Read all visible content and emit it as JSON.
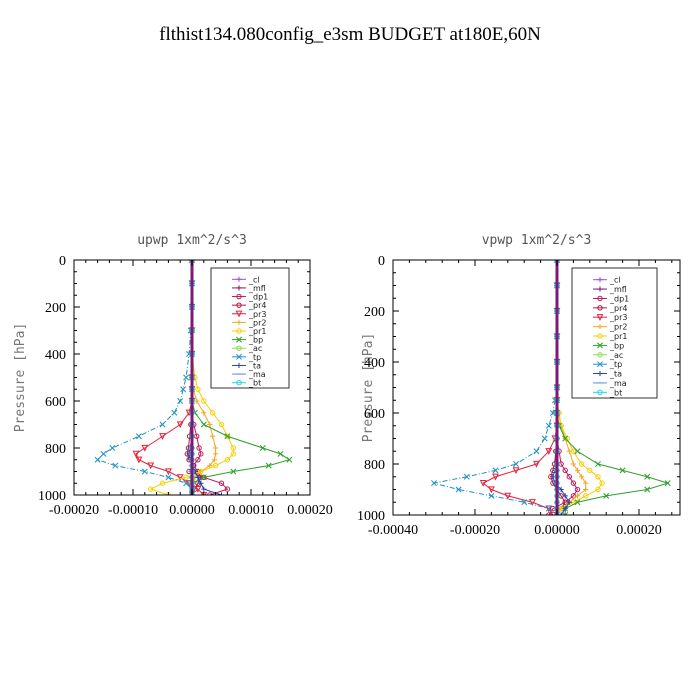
{
  "title": "flthist134.080config_e3sm  BUDGET at180E,60N",
  "chart_data": [
    {
      "type": "line",
      "title": "upwp  1xm^2/s^3",
      "ylabel": "Pressure [hPa]",
      "xlim": [
        -0.0002,
        0.0002
      ],
      "ylim": [
        1000,
        0
      ],
      "xticks": [
        "-0.00020",
        "-0.00010",
        "0.00000",
        "0.00010",
        "0.00020"
      ],
      "xtick_values": [
        -0.0002,
        -0.0001,
        0,
        0.0001,
        0.0002
      ],
      "yticks": [
        "0",
        "200",
        "400",
        "600",
        "800",
        "1000"
      ],
      "ytick_values": [
        0,
        200,
        400,
        600,
        800,
        1000
      ],
      "legend_position": "top-right",
      "pressure": [
        0,
        100,
        200,
        300,
        400,
        500,
        550,
        600,
        650,
        700,
        750,
        800,
        825,
        850,
        875,
        900,
        925,
        950,
        975,
        1000
      ],
      "series": [
        {
          "name": "_cl",
          "color": "#9a4fd6",
          "marker": "+",
          "values": [
            0,
            0,
            0,
            0,
            0,
            0,
            0,
            0,
            0,
            0,
            0,
            0,
            0,
            0,
            0,
            0,
            0,
            0,
            0,
            0
          ]
        },
        {
          "name": "_mfl",
          "color": "#7b1a78",
          "marker": "+",
          "values": [
            0,
            0,
            0,
            0,
            0,
            0,
            0,
            0,
            0,
            0,
            0,
            0,
            0,
            0,
            0,
            0,
            0,
            0,
            0,
            0
          ]
        },
        {
          "name": "_dp1",
          "color": "#c2185b",
          "marker": "o",
          "values": [
            0,
            0,
            0,
            0,
            0,
            0,
            0,
            0,
            0,
            3e-06,
            8e-06,
            1.2e-05,
            1.5e-05,
            1e-05,
            2e-06,
            -5e-06,
            2e-05,
            5e-05,
            6e-05,
            3e-05
          ]
        },
        {
          "name": "_pr4",
          "color": "#b01840",
          "marker": "o",
          "values": [
            0,
            0,
            0,
            0,
            0,
            0,
            0,
            0,
            0,
            -2e-06,
            -4e-06,
            -6e-06,
            -8e-06,
            -5e-06,
            3e-06,
            1e-05,
            1.5e-05,
            1e-05,
            5e-06,
            0
          ]
        },
        {
          "name": "_pr3",
          "color": "#e8213a",
          "marker": "v",
          "values": [
            0,
            0,
            0,
            0,
            0,
            0,
            0,
            0,
            -5e-06,
            -2e-05,
            -5e-05,
            -8e-05,
            -9.5e-05,
            -9e-05,
            -7e-05,
            -4e-05,
            -2e-05,
            -5e-06,
            1e-05,
            2e-05
          ]
        },
        {
          "name": "_pr2",
          "color": "#f5a623",
          "marker": "+",
          "values": [
            0,
            0,
            0,
            0,
            0,
            0,
            2e-06,
            8e-06,
            2e-05,
            3e-05,
            3.5e-05,
            4e-05,
            4e-05,
            3.8e-05,
            3e-05,
            1.5e-05,
            5e-06,
            0,
            0,
            0
          ]
        },
        {
          "name": "_pr1",
          "color": "#f5d000",
          "marker": "o",
          "values": [
            0,
            0,
            0,
            0,
            0,
            5e-06,
            1e-05,
            2e-05,
            3.5e-05,
            5e-05,
            6e-05,
            7e-05,
            7e-05,
            6e-05,
            4e-05,
            1.5e-05,
            -1e-05,
            -5e-05,
            -7e-05,
            -4e-05
          ]
        },
        {
          "name": "_bp",
          "color": "#2ca02c",
          "marker": "x",
          "values": [
            0,
            0,
            0,
            0,
            0,
            0,
            0,
            0,
            5e-06,
            2e-05,
            6e-05,
            0.00012,
            0.00015,
            0.000165,
            0.00013,
            7e-05,
            2e-05,
            0,
            0,
            0
          ]
        },
        {
          "name": "_ac",
          "color": "#8fd84e",
          "marker": "o",
          "values": [
            0,
            0,
            0,
            0,
            0,
            0,
            0,
            0,
            0,
            0,
            0,
            0,
            0,
            0,
            0,
            0,
            0,
            0,
            0,
            0
          ]
        },
        {
          "name": "_tp",
          "color": "#1f8fc2",
          "marker": "x",
          "values": [
            0,
            0,
            0,
            -2e-06,
            -5e-06,
            -1e-05,
            -1.5e-05,
            -2e-05,
            -3e-05,
            -5e-05,
            -9e-05,
            -0.000135,
            -0.00015,
            -0.00016,
            -0.00013,
            -8e-05,
            -4e-05,
            -1e-05,
            0,
            0
          ]
        },
        {
          "name": "_ta",
          "color": "#2b3fb0",
          "marker": "+",
          "values": [
            0,
            0,
            0,
            0,
            0,
            0,
            0,
            0,
            0,
            0,
            0,
            -3e-06,
            -5e-06,
            -3e-06,
            0,
            5e-06,
            1e-05,
            1.5e-05,
            2e-05,
            5e-05
          ]
        },
        {
          "name": "_ma",
          "color": "#5a8ee0",
          "marker": "-",
          "values": [
            0,
            0,
            0,
            0,
            0,
            0,
            0,
            0,
            0,
            0,
            0,
            0,
            0,
            0,
            0,
            0,
            0,
            0,
            0,
            0
          ]
        },
        {
          "name": "_bt",
          "color": "#20d6e6",
          "marker": "o",
          "values": [
            0,
            0,
            0,
            0,
            0,
            0,
            0,
            0,
            0,
            0,
            0,
            0,
            0,
            0,
            0,
            0,
            0,
            0,
            0,
            0
          ]
        }
      ]
    },
    {
      "type": "line",
      "title": "vpwp  1xm^2/s^3",
      "ylabel": "Pressure [hPa]",
      "xlim": [
        -0.0004,
        0.0003
      ],
      "ylim": [
        1000,
        0
      ],
      "xticks": [
        "-0.00040",
        "-0.00020",
        "0.00000",
        "0.00020"
      ],
      "xtick_values": [
        -0.0004,
        -0.0002,
        0,
        0.0002
      ],
      "yticks": [
        "0",
        "200",
        "400",
        "600",
        "800",
        "1000"
      ],
      "ytick_values": [
        0,
        200,
        400,
        600,
        800,
        1000
      ],
      "legend_position": "top-right",
      "pressure": [
        0,
        100,
        200,
        300,
        400,
        500,
        550,
        600,
        650,
        700,
        750,
        800,
        825,
        850,
        875,
        900,
        925,
        950,
        975,
        1000
      ],
      "series": [
        {
          "name": "_cl",
          "color": "#9a4fd6",
          "marker": "+",
          "values": [
            0,
            0,
            0,
            0,
            0,
            0,
            0,
            0,
            0,
            0,
            0,
            0,
            0,
            0,
            0,
            0,
            0,
            0,
            0,
            0
          ]
        },
        {
          "name": "_mfl",
          "color": "#7b1a78",
          "marker": "+",
          "values": [
            0,
            0,
            0,
            0,
            0,
            0,
            0,
            0,
            0,
            0,
            0,
            0,
            0,
            0,
            0,
            0,
            0,
            0,
            0,
            0
          ]
        },
        {
          "name": "_dp1",
          "color": "#c2185b",
          "marker": "o",
          "values": [
            0,
            0,
            0,
            0,
            0,
            0,
            0,
            0,
            0,
            0,
            5e-06,
            1e-05,
            2e-05,
            3e-05,
            4e-05,
            5e-05,
            4e-05,
            2e-05,
            -1e-05,
            -2e-05
          ]
        },
        {
          "name": "_pr4",
          "color": "#b01840",
          "marker": "o",
          "values": [
            0,
            0,
            0,
            0,
            0,
            0,
            0,
            0,
            0,
            0,
            -3e-06,
            -6e-06,
            -1e-05,
            -1.5e-05,
            -1e-05,
            0,
            1e-05,
            2e-05,
            1e-05,
            0
          ]
        },
        {
          "name": "_pr3",
          "color": "#e8213a",
          "marker": "v",
          "values": [
            0,
            0,
            0,
            0,
            0,
            0,
            0,
            0,
            0,
            -5e-06,
            -2e-05,
            -5e-05,
            -0.0001,
            -0.00015,
            -0.00018,
            -0.00016,
            -0.00012,
            -6e-05,
            -2e-05,
            -1e-05
          ]
        },
        {
          "name": "_pr2",
          "color": "#f5a623",
          "marker": "+",
          "values": [
            0,
            0,
            0,
            0,
            0,
            0,
            0,
            3e-06,
            1e-05,
            2e-05,
            3e-05,
            4e-05,
            5e-05,
            6e-05,
            7e-05,
            7e-05,
            5e-05,
            3e-05,
            1e-05,
            0
          ]
        },
        {
          "name": "_pr1",
          "color": "#f5d000",
          "marker": "o",
          "values": [
            0,
            0,
            0,
            0,
            0,
            0,
            0,
            5e-06,
            1e-05,
            2.5e-05,
            4e-05,
            6e-05,
            8e-05,
            0.0001,
            0.00011,
            0.0001,
            7e-05,
            4e-05,
            1e-05,
            0
          ]
        },
        {
          "name": "_bp",
          "color": "#2ca02c",
          "marker": "x",
          "values": [
            0,
            0,
            0,
            0,
            0,
            0,
            0,
            0,
            5e-06,
            2e-05,
            5e-05,
            0.0001,
            0.00016,
            0.00022,
            0.00027,
            0.00022,
            0.00012,
            5e-05,
            2e-05,
            2e-05
          ]
        },
        {
          "name": "_ac",
          "color": "#8fd84e",
          "marker": "o",
          "values": [
            0,
            0,
            0,
            0,
            0,
            0,
            0,
            0,
            0,
            0,
            0,
            0,
            0,
            0,
            0,
            0,
            0,
            0,
            0,
            0
          ]
        },
        {
          "name": "_tp",
          "color": "#1f8fc2",
          "marker": "x",
          "values": [
            0,
            0,
            0,
            0,
            0,
            0,
            -5e-06,
            -1e-05,
            -2e-05,
            -3e-05,
            -5e-05,
            -0.0001,
            -0.00015,
            -0.00022,
            -0.0003,
            -0.00024,
            -0.00016,
            -8e-05,
            -2e-05,
            0
          ]
        },
        {
          "name": "_ta",
          "color": "#2b3fb0",
          "marker": "+",
          "values": [
            0,
            0,
            0,
            0,
            0,
            0,
            0,
            0,
            0,
            0,
            0,
            0,
            -5e-06,
            -1e-05,
            -5e-06,
            1e-05,
            2e-05,
            3e-05,
            2e-05,
            1e-05
          ]
        },
        {
          "name": "_ma",
          "color": "#5a8ee0",
          "marker": "-",
          "values": [
            0,
            0,
            0,
            0,
            0,
            0,
            0,
            0,
            0,
            0,
            0,
            0,
            0,
            0,
            0,
            0,
            0,
            0,
            0,
            0
          ]
        },
        {
          "name": "_bt",
          "color": "#20d6e6",
          "marker": "o",
          "values": [
            0,
            0,
            0,
            0,
            0,
            0,
            0,
            0,
            0,
            0,
            0,
            0,
            0,
            0,
            0,
            0,
            0,
            0,
            0,
            0
          ]
        }
      ]
    }
  ]
}
